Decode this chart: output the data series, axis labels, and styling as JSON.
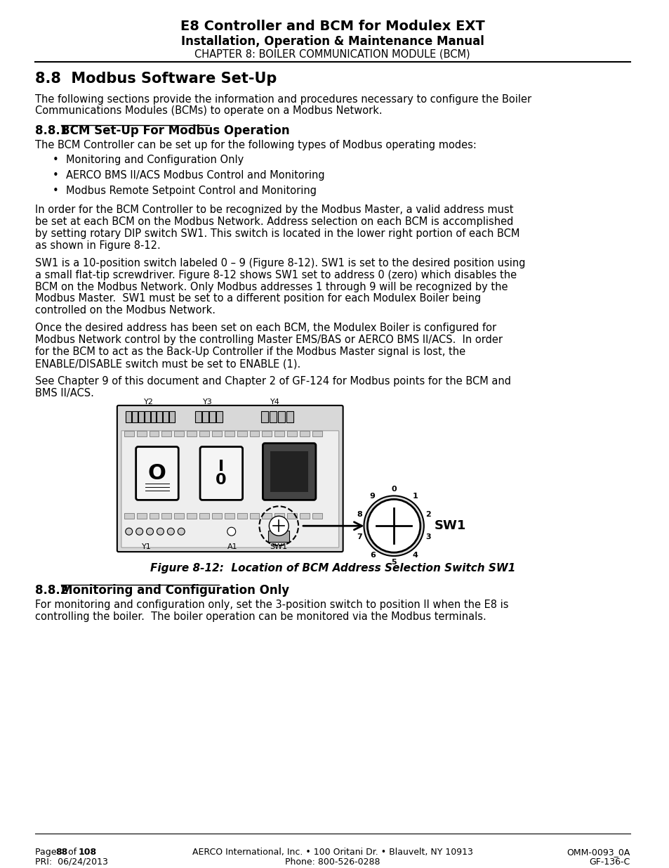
{
  "title_line1": "E8 Controller and BCM for Modulex EXT",
  "title_line2": "Installation, Operation & Maintenance Manual",
  "title_line3_bold": "CHAPTER 8:",
  "title_line3_rest": " BOILER COMMUNICATION MODULE (BCM)",
  "section_heading": "8.8  Modbus Software Set-Up",
  "section_881_label": "8.8.1 ",
  "section_881_underline": "BCM Set-Up For Modbus Operation",
  "para1": "The following sections provide the information and procedures necessary to configure the Boiler\nCommunications Modules (BCMs) to operate on a Modbus Network.",
  "para_881_intro": "The BCM Controller can be set up for the following types of Modbus operating modes:",
  "bullets": [
    "Monitoring and Configuration Only",
    "AERCO BMS II/ACS Modbus Control and Monitoring",
    "Modbus Remote Setpoint Control and Monitoring"
  ],
  "para2": "In order for the BCM Controller to be recognized by the Modbus Master, a valid address must\nbe set at each BCM on the Modbus Network. Address selection on each BCM is accomplished\nby setting rotary DIP switch SW1. This switch is located in the lower right portion of each BCM\nas shown in Figure 8-12.",
  "para3": "SW1 is a 10-position switch labeled 0 – 9 (Figure 8-12). SW1 is set to the desired position using\na small flat-tip screwdriver. Figure 8-12 shows SW1 set to address 0 (zero) which disables the\nBCM on the Modbus Network. Only Modbus addresses 1 through 9 will be recognized by the\nModbus Master.  SW1 must be set to a different position for each Modulex Boiler being\ncontrolled on the Modbus Network.",
  "para4": "Once the desired address has been set on each BCM, the Modulex Boiler is configured for\nModbus Network control by the controlling Master EMS/BAS or AERCO BMS II/ACS.  In order\nfor the BCM to act as the Back-Up Controller if the Modbus Master signal is lost, the\nENABLE/DISABLE switch must be set to ENABLE (1).",
  "para5": "See Chapter 9 of this document and Chapter 2 of GF-124 for Modbus points for the BCM and\nBMS II/ACS.",
  "fig_caption": "Figure 8-12:  Location of BCM Address Selection Switch SW1",
  "section_882_label": "8.8.2 ",
  "section_882_underline": "Monitoring and Configuration Only",
  "para6": "For monitoring and configuration only, set the 3-position switch to position II when the E8 is\ncontrolling the boiler.  The boiler operation can be monitored via the Modbus terminals.",
  "footer_left_line1": "Page ",
  "footer_left_bold1": "88",
  "footer_left_mid1": " of ",
  "footer_left_bold2": "108",
  "footer_left_line2": "PRI:  06/24/2013",
  "footer_center_line1": "AERCO International, Inc. • 100 Oritani Dr. • Blauvelt, NY 10913",
  "footer_center_line2": "Phone: 800-526-0288",
  "footer_right_line1": "OMM-0093_0A",
  "footer_right_line2": "GF-136-C",
  "bg_color": "#ffffff",
  "text_color": "#000000"
}
